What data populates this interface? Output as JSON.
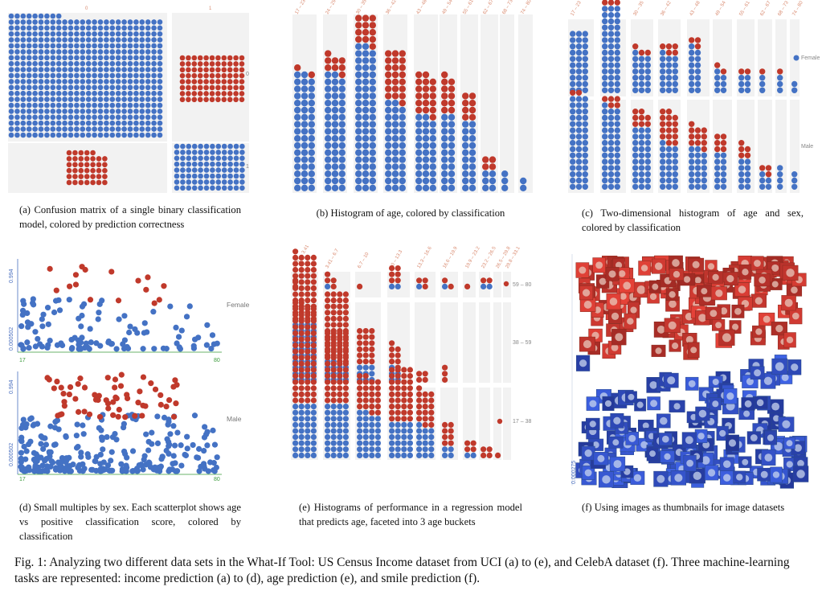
{
  "colors": {
    "blue": "#4472c4",
    "red": "#c0392b",
    "panel_bg": "#f2f2f2"
  },
  "panel_a": {
    "col_labels": [
      "0",
      "1"
    ],
    "row_labels": [
      "0",
      "1"
    ],
    "caption": "(a) Confusion matrix of a single binary classification model, colored by prediction correctness"
  },
  "panel_b": {
    "bins": [
      "17 – 23",
      "24 – 29",
      "30 – 35",
      "36 – 42",
      "43 – 48",
      "49 – 54",
      "55 – 61",
      "62 – 67",
      "68 – 73",
      "74 – 80"
    ],
    "caption": "(b) Histogram of age, colored by classification"
  },
  "panel_c": {
    "bins": [
      "17 – 23",
      "24 – 29",
      "30 – 35",
      "36 – 42",
      "43 – 48",
      "49 – 54",
      "55 – 61",
      "62 – 67",
      "68 – 73",
      "74 – 80"
    ],
    "rows": [
      "Female",
      "Male"
    ],
    "caption": "(c) Two-dimensional histogram of age and sex, colored by classification"
  },
  "panel_d": {
    "rows": [
      "Female",
      "Male"
    ],
    "y_top": "0.994",
    "y_bottom": "0.000502",
    "x_min": "17",
    "x_max": "80",
    "caption": "(d) Small multiples by sex. Each scatterplot shows age vs positive classification score, colored by classification"
  },
  "panel_e": {
    "bins": [
      "0.111 – 3.41",
      "3.41 – 6.7",
      "6.7 – 10",
      "10 – 13.3",
      "13.3 – 16.6",
      "16.6 – 19.9",
      "19.9 – 23.2",
      "23.2 – 26.5",
      "26.5 – 29.8",
      "29.8 – 33.1"
    ],
    "rows": [
      "59 – 80",
      "38 – 59",
      "17 – 38"
    ],
    "caption": "(e) Histograms of performance in a regression model that predicts age, faceted into 3 age buckets"
  },
  "panel_f": {
    "y_bottom": "0.000275",
    "caption": "(f) Using images as thumbnails for image datasets"
  },
  "figure_caption": "Fig. 1: Analyzing two different data sets in the What-If Tool: US Census Income dataset from UCI (a) to (e), and CelebA dataset (f). Three machine-learning tasks are represented: income prediction (a) to (d), age prediction (e), and smile prediction (f)."
}
